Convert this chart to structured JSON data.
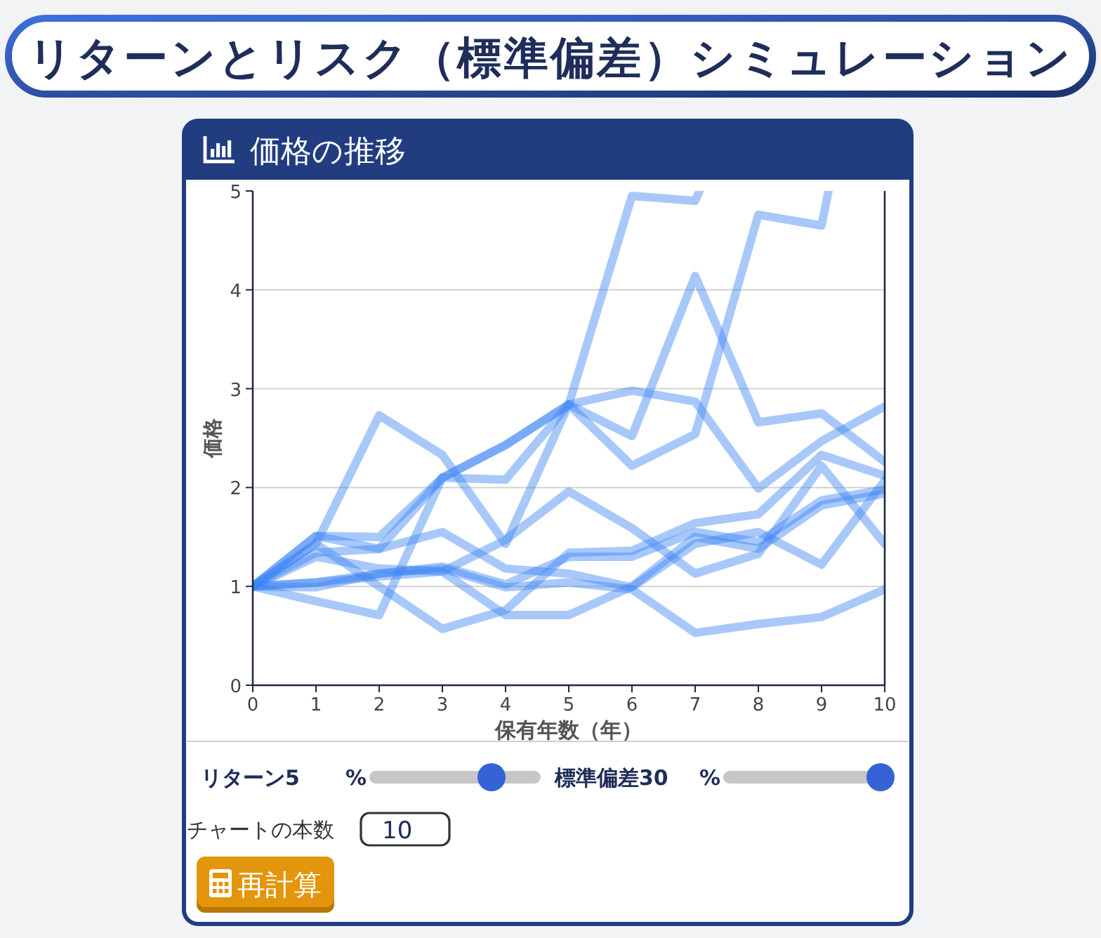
{
  "chart_data": {
    "type": "line",
    "title": "リターンとリスク（標準偏差）シミュレーション",
    "subtitle": "価格の推移",
    "xlabel": "保有年数（年）",
    "ylabel": "価格",
    "x": [
      0,
      1,
      2,
      3,
      4,
      5,
      6,
      7,
      8,
      9,
      10
    ],
    "xlim": [
      0,
      10
    ],
    "ylim": [
      0,
      5
    ],
    "xticks": [
      0,
      1,
      2,
      3,
      4,
      5,
      6,
      7,
      8,
      9,
      10
    ],
    "yticks": [
      0,
      1,
      2,
      3,
      4,
      5
    ],
    "grid": "y",
    "line_style": "solid",
    "series": [
      {
        "color": "#a8c8fa",
        "x": [
          0,
          1,
          2,
          3,
          4,
          5,
          6,
          7,
          7.07
        ],
        "values": [
          1,
          1.51,
          1.5,
          2.1,
          2.43,
          2.84,
          4.95,
          4.9,
          5
        ]
      },
      {
        "color": "#a8c8fa",
        "x": [
          0,
          1,
          2,
          3,
          4,
          5,
          6,
          7,
          8,
          9,
          9.11
        ],
        "values": [
          1,
          1.43,
          2.73,
          2.33,
          1.43,
          2.84,
          2.22,
          2.54,
          4.76,
          4.65,
          5
        ]
      },
      {
        "color": "#a8c8fa",
        "values": [
          1,
          1.34,
          1.38,
          2.1,
          2.43,
          2.84,
          2.52,
          4.14,
          2.66,
          2.75,
          2.26
        ]
      },
      {
        "color": "#a8c8fa",
        "values": [
          1,
          0.85,
          0.71,
          2.1,
          2.08,
          2.84,
          2.98,
          2.87,
          1.99,
          2.47,
          2.82
        ]
      },
      {
        "color": "#a8c8fa",
        "values": [
          1,
          1.3,
          1.18,
          1.15,
          1.47,
          1.96,
          1.59,
          1.13,
          1.33,
          2.22,
          1.43
        ]
      },
      {
        "color": "#a8c8fa",
        "values": [
          1,
          1.43,
          1.0,
          0.57,
          0.76,
          1.34,
          1.36,
          1.64,
          1.73,
          2.33,
          2.12
        ]
      },
      {
        "color": "#a8c8fa",
        "values": [
          1,
          1.04,
          1.13,
          1.2,
          1.02,
          1.3,
          1.3,
          1.55,
          1.45,
          1.87,
          1.98
        ]
      },
      {
        "color": "#a8c8fa",
        "values": [
          1,
          1.04,
          1.1,
          1.15,
          0.71,
          0.71,
          1.0,
          1.5,
          1.38,
          1.82,
          1.94
        ]
      },
      {
        "color": "#a8c8fa",
        "values": [
          1,
          1.51,
          1.38,
          1.55,
          1.18,
          1.13,
          0.99,
          1.43,
          1.55,
          1.22,
          2.07
        ]
      },
      {
        "color": "#a8c8fa",
        "values": [
          1,
          0.99,
          1.13,
          1.18,
          0.99,
          1.04,
          0.97,
          0.53,
          0.62,
          0.69,
          0.97
        ]
      }
    ],
    "annotations": [
      "リターン5",
      "%",
      "標準偏差30",
      "%",
      "チャートの本数",
      "10",
      "再計算"
    ]
  }
}
